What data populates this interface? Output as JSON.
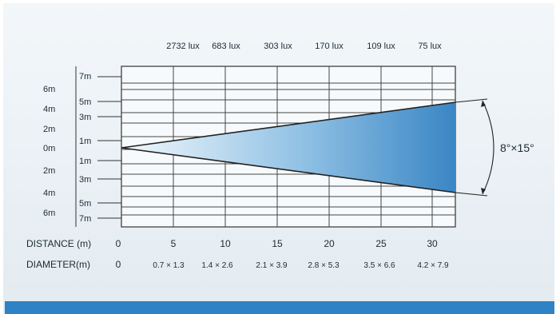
{
  "lux_labels": [
    "2732 lux",
    "683 lux",
    "303 lux",
    "170 lux",
    "109 lux",
    "75 lux"
  ],
  "outer_height_labels": [
    "6m",
    "4m",
    "2m",
    "0m",
    "2m",
    "4m",
    "6m"
  ],
  "inner_height_labels": [
    "7m",
    "5m",
    "3m",
    "1m",
    "1m",
    "3m",
    "5m",
    "7m"
  ],
  "beam_angle": "8°×15°",
  "distance": {
    "label": "DISTANCE (m)",
    "ticks": [
      "0",
      "5",
      "10",
      "15",
      "20",
      "25",
      "30"
    ]
  },
  "diameter": {
    "label": "DIAMETER(m)",
    "values": [
      "0",
      "0.7 × 1.3",
      "1.4 × 2.6",
      "2.1 × 3.9",
      "2.8 × 5.3",
      "3.5 × 6.6",
      "4.2 × 7.9"
    ]
  },
  "colors": {
    "grid": "#333333",
    "beam_light": "#eef6fc",
    "beam_dark": "#2f7fbf",
    "band": "#2f82c4"
  }
}
